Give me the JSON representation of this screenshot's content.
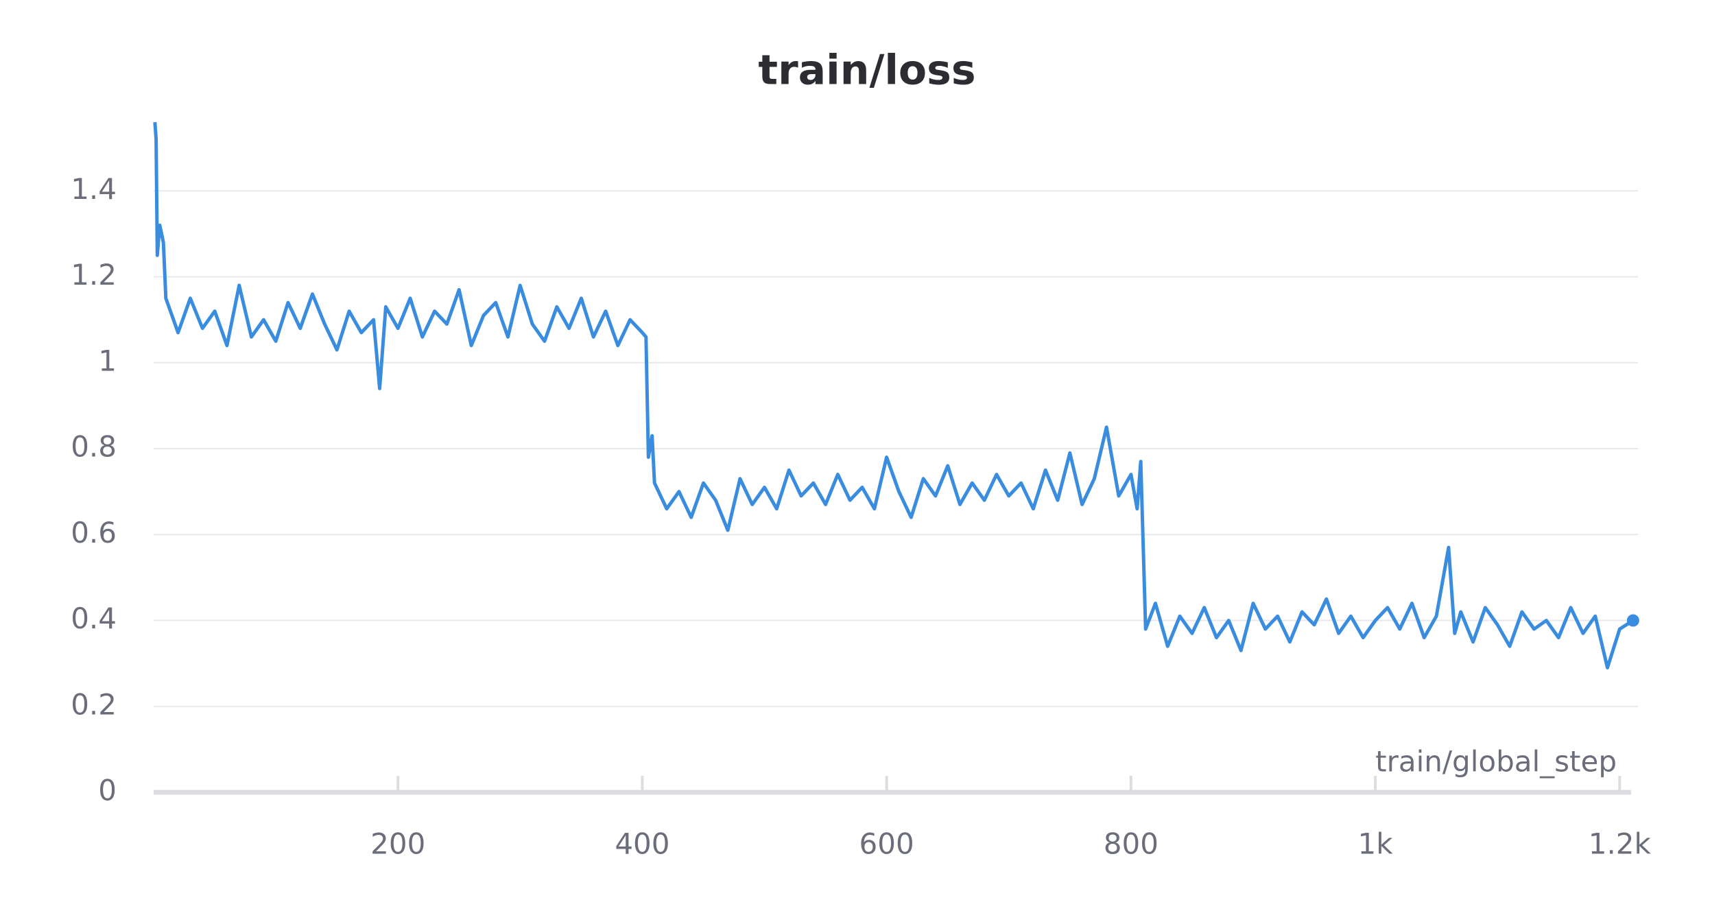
{
  "chart_data": {
    "type": "line",
    "title": "train/loss",
    "x_label": "train/global_step",
    "color": "#3a8dde",
    "grid": true,
    "xlim": [
      0,
      1215
    ],
    "ylim": [
      0,
      1.6
    ],
    "xticks": [
      200,
      400,
      600,
      800,
      {
        "value": 1000,
        "label": "1k"
      },
      {
        "value": 1200,
        "label": "1.2k"
      }
    ],
    "yticks": [
      0,
      0.2,
      0.4,
      0.6,
      0.8,
      1,
      1.2,
      1.4
    ],
    "x": [
      1,
      2,
      3,
      5,
      8,
      10,
      20,
      30,
      40,
      50,
      60,
      70,
      80,
      90,
      100,
      110,
      120,
      130,
      140,
      150,
      160,
      170,
      180,
      185,
      190,
      200,
      210,
      220,
      230,
      240,
      250,
      260,
      270,
      280,
      290,
      300,
      310,
      320,
      330,
      340,
      350,
      360,
      370,
      380,
      390,
      400,
      403,
      405,
      408,
      410,
      420,
      430,
      440,
      450,
      460,
      470,
      480,
      490,
      500,
      510,
      520,
      530,
      540,
      550,
      560,
      570,
      580,
      590,
      600,
      610,
      620,
      630,
      640,
      650,
      660,
      670,
      680,
      690,
      700,
      710,
      720,
      730,
      740,
      750,
      760,
      770,
      780,
      790,
      800,
      805,
      808,
      812,
      820,
      830,
      840,
      850,
      860,
      870,
      880,
      890,
      900,
      910,
      920,
      930,
      940,
      950,
      960,
      970,
      980,
      990,
      1000,
      1010,
      1020,
      1030,
      1040,
      1050,
      1060,
      1065,
      1070,
      1080,
      1090,
      1100,
      1110,
      1120,
      1130,
      1140,
      1150,
      1160,
      1170,
      1180,
      1190,
      1200,
      1211
    ],
    "values": [
      1.56,
      1.52,
      1.25,
      1.32,
      1.28,
      1.15,
      1.07,
      1.15,
      1.08,
      1.12,
      1.04,
      1.18,
      1.06,
      1.1,
      1.05,
      1.14,
      1.08,
      1.16,
      1.09,
      1.03,
      1.12,
      1.07,
      1.1,
      0.94,
      1.13,
      1.08,
      1.15,
      1.06,
      1.12,
      1.09,
      1.17,
      1.04,
      1.11,
      1.14,
      1.06,
      1.18,
      1.09,
      1.05,
      1.13,
      1.08,
      1.15,
      1.06,
      1.12,
      1.04,
      1.1,
      1.07,
      1.06,
      0.78,
      0.83,
      0.72,
      0.66,
      0.7,
      0.64,
      0.72,
      0.68,
      0.61,
      0.73,
      0.67,
      0.71,
      0.66,
      0.75,
      0.69,
      0.72,
      0.67,
      0.74,
      0.68,
      0.71,
      0.66,
      0.78,
      0.7,
      0.64,
      0.73,
      0.69,
      0.76,
      0.67,
      0.72,
      0.68,
      0.74,
      0.69,
      0.72,
      0.66,
      0.75,
      0.68,
      0.79,
      0.67,
      0.73,
      0.85,
      0.69,
      0.74,
      0.66,
      0.77,
      0.38,
      0.44,
      0.34,
      0.41,
      0.37,
      0.43,
      0.36,
      0.4,
      0.33,
      0.44,
      0.38,
      0.41,
      0.35,
      0.42,
      0.39,
      0.45,
      0.37,
      0.41,
      0.36,
      0.4,
      0.43,
      0.38,
      0.44,
      0.36,
      0.41,
      0.57,
      0.37,
      0.42,
      0.35,
      0.43,
      0.39,
      0.34,
      0.42,
      0.38,
      0.4,
      0.36,
      0.43,
      0.37,
      0.41,
      0.29,
      0.38,
      0.4
    ]
  }
}
